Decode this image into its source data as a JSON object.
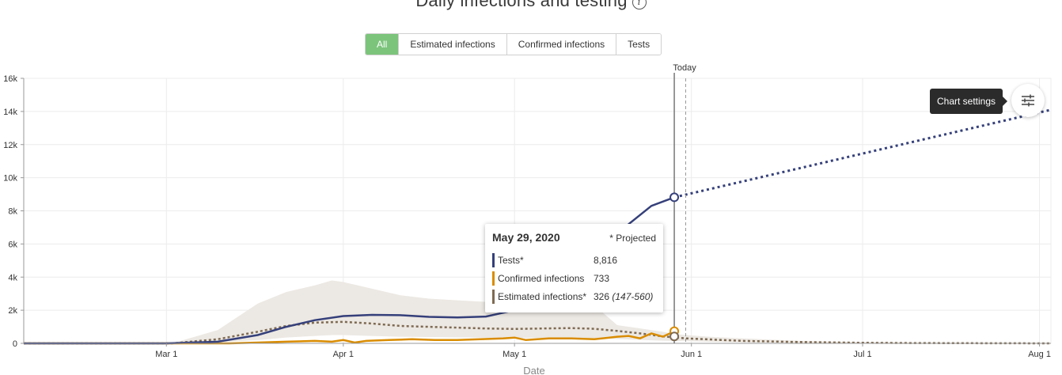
{
  "title": "Daily infections and testing",
  "tabs": [
    "All",
    "Estimated infections",
    "Confirmed infections",
    "Tests"
  ],
  "active_tab": "All",
  "settings": {
    "tooltip": "Chart settings"
  },
  "tooltip": {
    "date": "May 29, 2020",
    "projected_note": "* Projected",
    "rows": [
      {
        "label": "Tests*",
        "value": "8,816",
        "range": "",
        "color": "#35407a"
      },
      {
        "label": "Confirmed infections",
        "value": "733",
        "range": "",
        "color": "#d98c00"
      },
      {
        "label": "Estimated infections*",
        "value": "326",
        "range": "(147-560)",
        "color": "#7e6a52"
      }
    ]
  },
  "colors": {
    "tests": "#35407a",
    "confirmed": "#d98c00",
    "estimated": "#7e6a52",
    "band": "#ece8e3",
    "grid": "#ececec"
  },
  "chart_data": {
    "type": "line",
    "xlabel": "Date",
    "ylabel": "",
    "x_ticks": [
      {
        "day": 29,
        "label": "Mar 1"
      },
      {
        "day": 60,
        "label": "Apr 1"
      },
      {
        "day": 90,
        "label": "May 1"
      },
      {
        "day": 121,
        "label": "Jun 1"
      },
      {
        "day": 151,
        "label": "Jul 1"
      },
      {
        "day": 182,
        "label": "Aug 1"
      }
    ],
    "y_ticks": [
      {
        "value": 0,
        "label": "0"
      },
      {
        "value": 2000,
        "label": "2k"
      },
      {
        "value": 4000,
        "label": "4k"
      },
      {
        "value": 6000,
        "label": "6k"
      },
      {
        "value": 8000,
        "label": "8k"
      },
      {
        "value": 10000,
        "label": "10k"
      },
      {
        "value": 12000,
        "label": "12k"
      },
      {
        "value": 14000,
        "label": "14k"
      },
      {
        "value": 16000,
        "label": "16k"
      }
    ],
    "xlim": [
      4,
      184
    ],
    "ylim": [
      0,
      16000
    ],
    "today_label": "Today",
    "today_day": 120,
    "selected_day": 118,
    "series": [
      {
        "name": "Tests*",
        "key": "tests",
        "points": [
          [
            4,
            0
          ],
          [
            29,
            0
          ],
          [
            38,
            100
          ],
          [
            45,
            500
          ],
          [
            50,
            1000
          ],
          [
            55,
            1400
          ],
          [
            60,
            1650
          ],
          [
            65,
            1720
          ],
          [
            70,
            1700
          ],
          [
            75,
            1600
          ],
          [
            80,
            1560
          ],
          [
            85,
            1620
          ],
          [
            90,
            2000
          ],
          [
            95,
            2800
          ],
          [
            100,
            4000
          ],
          [
            105,
            5500
          ],
          [
            110,
            7200
          ],
          [
            114,
            8300
          ],
          [
            118,
            8816
          ]
        ],
        "projection": [
          [
            118,
            8816
          ],
          [
            184,
            14100
          ]
        ]
      },
      {
        "name": "Confirmed infections",
        "key": "confirmed",
        "points": [
          [
            4,
            0
          ],
          [
            40,
            0
          ],
          [
            45,
            50
          ],
          [
            50,
            100
          ],
          [
            55,
            150
          ],
          [
            58,
            100
          ],
          [
            60,
            200
          ],
          [
            62,
            50
          ],
          [
            64,
            150
          ],
          [
            68,
            200
          ],
          [
            72,
            250
          ],
          [
            76,
            200
          ],
          [
            80,
            200
          ],
          [
            84,
            250
          ],
          [
            88,
            300
          ],
          [
            90,
            350
          ],
          [
            92,
            200
          ],
          [
            96,
            300
          ],
          [
            100,
            300
          ],
          [
            104,
            250
          ],
          [
            108,
            400
          ],
          [
            110,
            450
          ],
          [
            112,
            300
          ],
          [
            114,
            600
          ],
          [
            116,
            400
          ],
          [
            118,
            733
          ]
        ]
      },
      {
        "name": "Estimated infections*",
        "key": "estimated",
        "points": [
          [
            4,
            0
          ],
          [
            30,
            0
          ],
          [
            38,
            250
          ],
          [
            45,
            700
          ],
          [
            50,
            1050
          ],
          [
            55,
            1250
          ],
          [
            60,
            1300
          ],
          [
            65,
            1200
          ],
          [
            70,
            1050
          ],
          [
            75,
            1000
          ],
          [
            80,
            950
          ],
          [
            85,
            900
          ],
          [
            90,
            870
          ],
          [
            95,
            900
          ],
          [
            100,
            920
          ],
          [
            104,
            880
          ],
          [
            108,
            750
          ],
          [
            112,
            600
          ],
          [
            116,
            420
          ],
          [
            120,
            300
          ],
          [
            130,
            150
          ],
          [
            140,
            80
          ],
          [
            150,
            40
          ],
          [
            160,
            20
          ],
          [
            170,
            10
          ],
          [
            184,
            0
          ]
        ],
        "band": [
          [
            4,
            0,
            0
          ],
          [
            30,
            0,
            0
          ],
          [
            38,
            80,
            800
          ],
          [
            45,
            200,
            2400
          ],
          [
            50,
            350,
            3100
          ],
          [
            55,
            450,
            3500
          ],
          [
            58,
            500,
            3800
          ],
          [
            60,
            500,
            3700
          ],
          [
            65,
            450,
            3300
          ],
          [
            70,
            400,
            2900
          ],
          [
            75,
            380,
            2700
          ],
          [
            80,
            360,
            2600
          ],
          [
            85,
            340,
            2500
          ],
          [
            90,
            320,
            2400
          ],
          [
            95,
            330,
            2450
          ],
          [
            100,
            330,
            2550
          ],
          [
            104,
            310,
            2300
          ],
          [
            108,
            260,
            1100
          ],
          [
            112,
            210,
            900
          ],
          [
            116,
            160,
            700
          ],
          [
            118,
            147,
            560
          ],
          [
            124,
            100,
            400
          ],
          [
            130,
            60,
            300
          ],
          [
            140,
            30,
            150
          ],
          [
            150,
            15,
            80
          ],
          [
            160,
            8,
            40
          ],
          [
            170,
            4,
            20
          ],
          [
            184,
            0,
            0
          ]
        ]
      }
    ]
  }
}
